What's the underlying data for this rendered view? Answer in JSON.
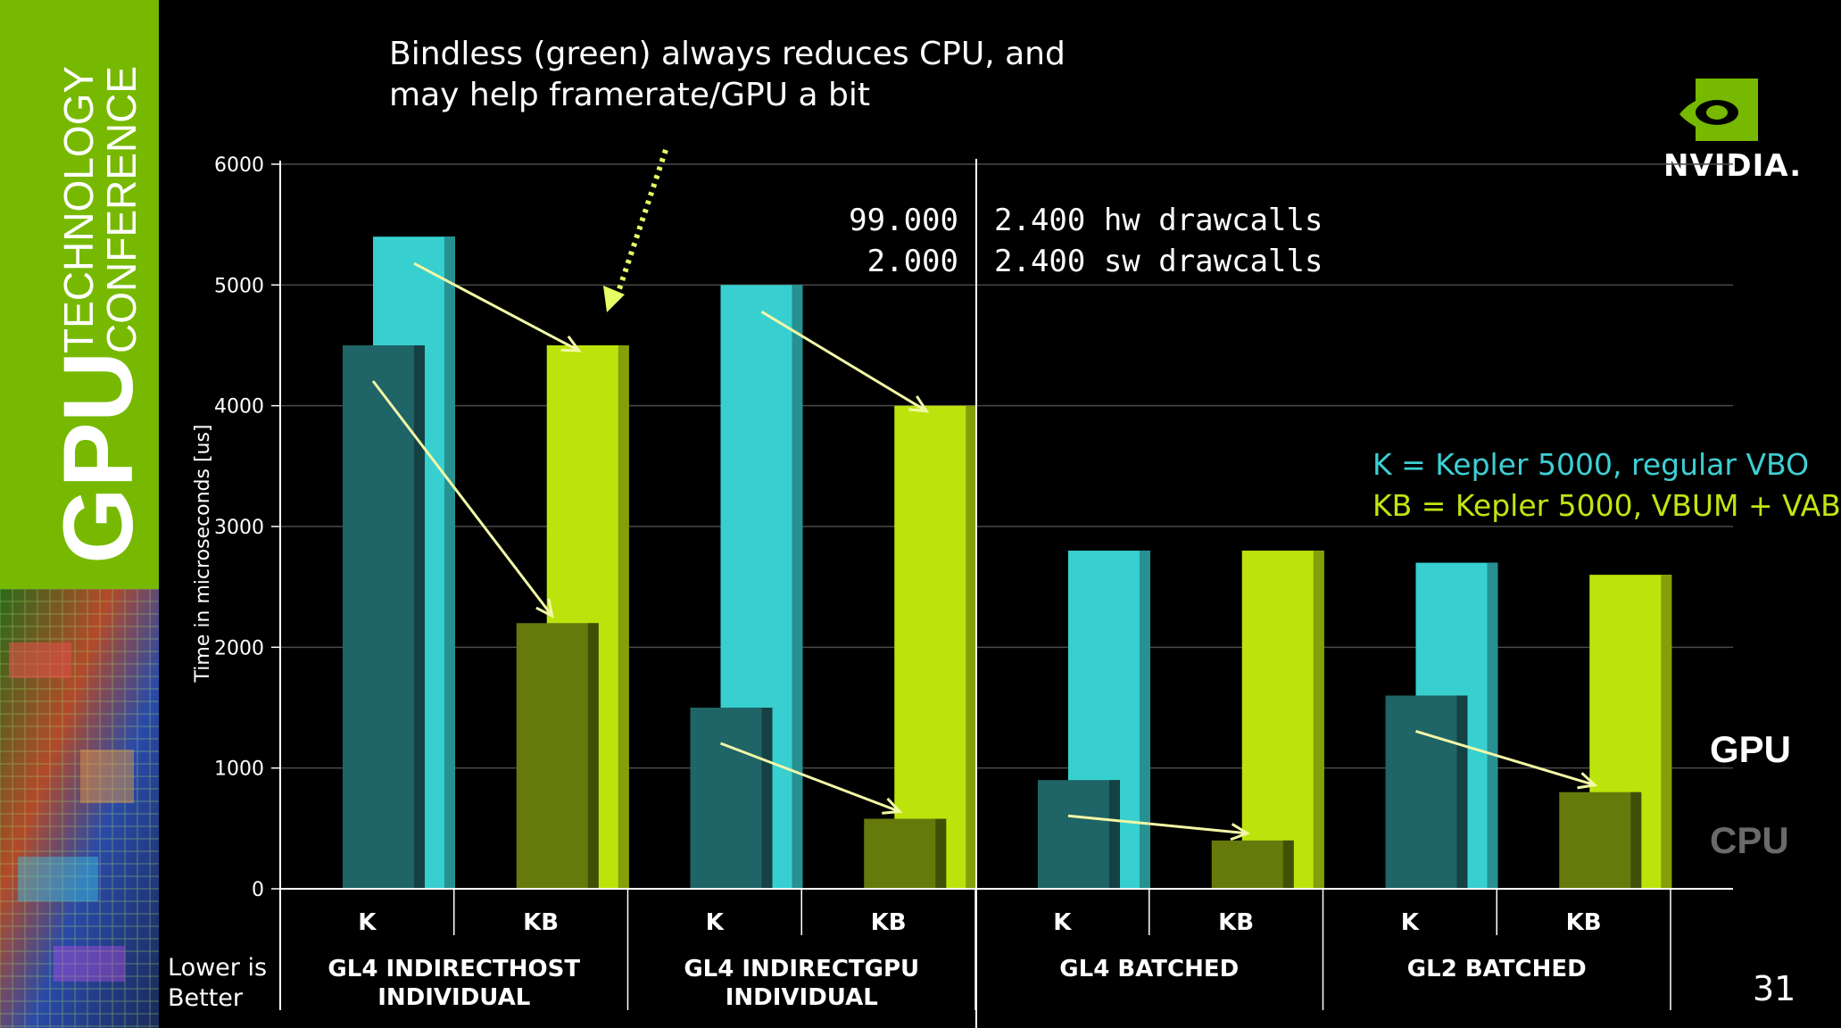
{
  "slide": {
    "headline_line1": "Bindless (green) always reduces CPU, and",
    "headline_line2": "may help framerate/GPU a bit",
    "brand_big": "GPU",
    "brand_line1": "TECHNOLOGY",
    "brand_line2": "CONFERENCE",
    "logo_text": "NVIDIA.",
    "annotation_left_1": "99.000",
    "annotation_left_2": "2.000",
    "annotation_right_1": "2.400 hw drawcalls",
    "annotation_right_2": "2.400 sw drawcalls",
    "legend_k": "K = Kepler 5000, regular VBO",
    "legend_kb": "KB = Kepler 5000, VBUM + VAB",
    "gpu_label": "GPU",
    "cpu_label": "CPU",
    "note_line1": "Lower is",
    "note_line2": "Better",
    "page_number": "31"
  },
  "colors": {
    "brand_green": "#76b900",
    "k_gpu": "#38cfd0",
    "k_cpu": "#1f6467",
    "kb_gpu": "#bde30c",
    "kb_cpu": "#667a0b",
    "legend_k": "#3ecfd4",
    "legend_kb": "#c4e312",
    "arrow": "#f2f7a6"
  },
  "chart_data": {
    "type": "bar",
    "ylabel": "Time in microseconds [us]",
    "ylim": [
      0,
      6000
    ],
    "yticks": [
      0,
      1000,
      2000,
      3000,
      4000,
      5000,
      6000
    ],
    "grid": true,
    "groups": [
      {
        "label_line1": "GL4 INDIRECTHOST",
        "label_line2": "INDIVIDUAL",
        "bars": [
          {
            "label": "K",
            "cpu": 4500,
            "gpu": 5400
          },
          {
            "label": "KB",
            "cpu": 2200,
            "gpu": 4500
          }
        ]
      },
      {
        "label_line1": "GL4 INDIRECTGPU",
        "label_line2": "INDIVIDUAL",
        "bars": [
          {
            "label": "K",
            "cpu": 1500,
            "gpu": 5000
          },
          {
            "label": "KB",
            "cpu": 580,
            "gpu": 4000
          }
        ]
      },
      {
        "label_line1": "GL4 BATCHED",
        "label_line2": "",
        "bars": [
          {
            "label": "K",
            "cpu": 900,
            "gpu": 2800
          },
          {
            "label": "KB",
            "cpu": 400,
            "gpu": 2800
          }
        ]
      },
      {
        "label_line1": "GL2 BATCHED",
        "label_line2": "",
        "bars": [
          {
            "label": "K",
            "cpu": 1600,
            "gpu": 2700
          },
          {
            "label": "KB",
            "cpu": 800,
            "gpu": 2600
          }
        ]
      }
    ]
  }
}
